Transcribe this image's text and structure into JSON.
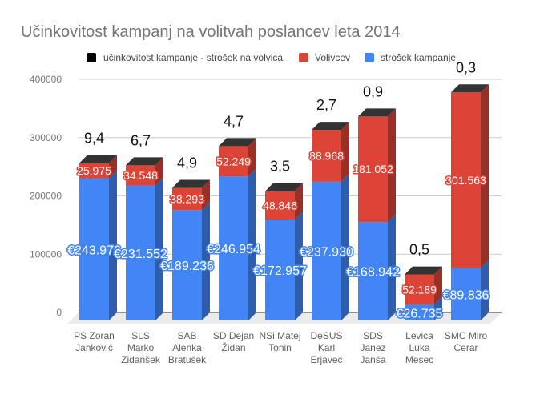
{
  "chart_data": {
    "type": "bar",
    "stacked": true,
    "three_d": true,
    "title": "Učinkovitost kampanj na volitvah poslancev leta 2014",
    "xlabel": "",
    "ylabel": "",
    "ylim": [
      0,
      400000
    ],
    "yticks": [
      0,
      100000,
      200000,
      300000,
      400000
    ],
    "ytick_labels": [
      "0",
      "100000",
      "200000",
      "300000",
      "400000"
    ],
    "grid": true,
    "legend": "top",
    "categories": [
      [
        "PS Zoran",
        "Janković"
      ],
      [
        "SLS",
        "Marko",
        "Zidanšek"
      ],
      [
        "SAB",
        "Alenka",
        "Bratušek"
      ],
      [
        "SD Dejan",
        "Židan"
      ],
      [
        "NSi Matej",
        "Tonin"
      ],
      [
        "DeSUS",
        "Karl",
        "Erjavec"
      ],
      [
        "SDS",
        "Janez",
        "Janša"
      ],
      [
        "Levica",
        "Luka",
        "Mesec"
      ],
      [
        "SMC Miro",
        "Cerar"
      ]
    ],
    "series": [
      {
        "name": "učinkovitost kampanje - strošek na volvica",
        "color": "#000000",
        "values": [
          9.4,
          6.7,
          4.9,
          4.7,
          3.5,
          2.7,
          0.9,
          0.5,
          0.3
        ],
        "labels": [
          "9,4",
          "6,7",
          "4,9",
          "4,7",
          "3,5",
          "2,7",
          "0,9",
          "0,5",
          "0,3"
        ]
      },
      {
        "name": "Volivcev",
        "color": "#db4437",
        "values": [
          25975,
          34548,
          38293,
          52249,
          48846,
          88968,
          181052,
          52189,
          301563
        ],
        "labels": [
          "25.975",
          "34.548",
          "38.293",
          "52.249",
          "48.846",
          "88.968",
          "181.052",
          "52.189",
          "301.563"
        ]
      },
      {
        "name": "strošek kampanje",
        "color": "#4285f4",
        "values": [
          243976,
          231552,
          189236,
          246954,
          172957,
          237930,
          168942,
          26735,
          89836
        ],
        "labels": [
          "€243.976",
          "€231.552",
          "€189.236",
          "€246.954",
          "€172.957",
          "€237.930",
          "€168.942",
          "€26.735",
          "€89.836"
        ]
      }
    ]
  }
}
